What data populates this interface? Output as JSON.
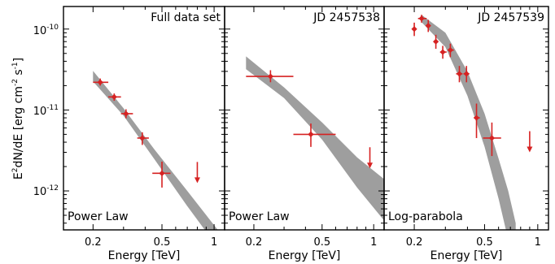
{
  "chart_data": {
    "type": "scatter",
    "ylabel": "E²dN/dE [erg cm⁻² s⁻¹]",
    "y_scale": "log",
    "x_scale": "log",
    "ylim": [
      3.3e-13,
      1.9e-10
    ],
    "xlim": [
      0.135,
      1.15
    ],
    "ytick_labels": [
      "10⁻¹⁰",
      "10⁻¹¹",
      "10⁻¹²"
    ],
    "ytick_values": [
      1e-10,
      1e-11,
      1e-12
    ],
    "colors": {
      "points": "#d62222",
      "band": "#9e9e9e"
    },
    "panels": [
      {
        "title": "Full data set",
        "model": "Power Law",
        "xlabel": "Energy [TeV]",
        "xtick_labels": [
          "0.2",
          "0.5",
          "1"
        ],
        "xtick_values": [
          0.2,
          0.5,
          1.0
        ],
        "points": [
          {
            "x": 0.22,
            "y": 2.2e-11,
            "xlo": 0.2,
            "xhi": 0.245,
            "ylo": 2e-11,
            "yhi": 2.45e-11
          },
          {
            "x": 0.265,
            "y": 1.45e-11,
            "xlo": 0.245,
            "xhi": 0.29,
            "ylo": 1.3e-11,
            "yhi": 1.6e-11
          },
          {
            "x": 0.31,
            "y": 9e-12,
            "xlo": 0.29,
            "xhi": 0.34,
            "ylo": 7.9e-12,
            "yhi": 1.02e-11
          },
          {
            "x": 0.385,
            "y": 4.5e-12,
            "xlo": 0.36,
            "xhi": 0.42,
            "ylo": 3.7e-12,
            "yhi": 5.3e-12
          },
          {
            "x": 0.5,
            "y": 1.65e-12,
            "xlo": 0.44,
            "xhi": 0.56,
            "ylo": 1.1e-12,
            "yhi": 2.3e-12
          }
        ],
        "upper_limits": [
          {
            "x": 0.8,
            "y": 1.25e-12
          }
        ],
        "band": [
          {
            "x": 0.2,
            "lo": 2.25e-11,
            "hi": 3.05e-11
          },
          {
            "x": 0.3,
            "lo": 8.5e-12,
            "hi": 1.05e-11
          },
          {
            "x": 0.45,
            "lo": 2.5e-12,
            "hi": 3.3e-12
          },
          {
            "x": 0.7,
            "lo": 6.5e-13,
            "hi": 1e-12
          },
          {
            "x": 1.05,
            "lo": 2e-13,
            "hi": 3.3e-13
          }
        ]
      },
      {
        "title": "JD 2457538",
        "model": "Power Law",
        "xlabel": "Energy [TeV]",
        "xtick_labels": [
          "0.2",
          "0.5",
          "1"
        ],
        "xtick_values": [
          0.2,
          0.5,
          1.0
        ],
        "points": [
          {
            "x": 0.25,
            "y": 2.6e-11,
            "xlo": 0.18,
            "xhi": 0.34,
            "ylo": 2.2e-11,
            "yhi": 3.1e-11
          },
          {
            "x": 0.43,
            "y": 5e-12,
            "xlo": 0.34,
            "xhi": 0.6,
            "ylo": 3.5e-12,
            "yhi": 6.8e-12
          }
        ],
        "upper_limits": [
          {
            "x": 0.95,
            "y": 1.9e-12
          }
        ],
        "band": [
          {
            "x": 0.18,
            "lo": 3.2e-11,
            "hi": 4.6e-11
          },
          {
            "x": 0.3,
            "lo": 1.4e-11,
            "hi": 1.9e-11
          },
          {
            "x": 0.5,
            "lo": 4.3e-12,
            "hi": 7e-12
          },
          {
            "x": 0.8,
            "lo": 1.1e-12,
            "hi": 2.6e-12
          },
          {
            "x": 1.15,
            "lo": 4.3e-13,
            "hi": 1.4e-12
          }
        ]
      },
      {
        "title": "JD 2457539",
        "model": "Log-parabola",
        "xlabel": "Energy [TeV]",
        "xtick_labels": [
          "0.2",
          "0.5",
          "1"
        ],
        "xtick_values": [
          0.2,
          0.5,
          1.0
        ],
        "points": [
          {
            "x": 0.2,
            "y": 1e-10,
            "xlo": 0.2,
            "xhi": 0.2,
            "ylo": 8.2e-11,
            "yhi": 1.2e-10
          },
          {
            "x": 0.22,
            "y": 1.35e-10,
            "xlo": 0.21,
            "xhi": 0.235,
            "ylo": 1.2e-10,
            "yhi": 1.5e-10
          },
          {
            "x": 0.24,
            "y": 1.1e-10,
            "xlo": 0.24,
            "xhi": 0.24,
            "ylo": 9.2e-11,
            "yhi": 1.3e-10
          },
          {
            "x": 0.265,
            "y": 7e-11,
            "xlo": 0.265,
            "xhi": 0.265,
            "ylo": 5.7e-11,
            "yhi": 8.5e-11
          },
          {
            "x": 0.29,
            "y": 5.2e-11,
            "xlo": 0.28,
            "xhi": 0.305,
            "ylo": 4.3e-11,
            "yhi": 6.2e-11
          },
          {
            "x": 0.32,
            "y": 5.5e-11,
            "xlo": 0.31,
            "xhi": 0.335,
            "ylo": 4.5e-11,
            "yhi": 6.6e-11
          },
          {
            "x": 0.36,
            "y": 2.8e-11,
            "xlo": 0.345,
            "xhi": 0.375,
            "ylo": 2.2e-11,
            "yhi": 3.5e-11
          },
          {
            "x": 0.395,
            "y": 2.8e-11,
            "xlo": 0.38,
            "xhi": 0.41,
            "ylo": 2.2e-11,
            "yhi": 3.5e-11
          },
          {
            "x": 0.45,
            "y": 8e-12,
            "xlo": 0.435,
            "xhi": 0.47,
            "ylo": 4.5e-12,
            "yhi": 1.2e-11
          },
          {
            "x": 0.55,
            "y": 4.5e-12,
            "xlo": 0.49,
            "xhi": 0.62,
            "ylo": 2.7e-12,
            "yhi": 7e-12
          }
        ],
        "upper_limits": [
          {
            "x": 0.9,
            "y": 3e-12
          }
        ],
        "band": [
          {
            "x": 0.22,
            "lo": 1.22e-10,
            "hi": 1.5e-10
          },
          {
            "x": 0.3,
            "lo": 6e-11,
            "hi": 9e-11
          },
          {
            "x": 0.4,
            "lo": 1.5e-11,
            "hi": 3e-11
          },
          {
            "x": 0.5,
            "lo": 3.5e-12,
            "hi": 9e-12
          },
          {
            "x": 0.6,
            "lo": 8e-13,
            "hi": 2.5e-12
          },
          {
            "x": 0.68,
            "lo": 2.5e-13,
            "hi": 1e-12
          },
          {
            "x": 0.75,
            "lo": 1e-13,
            "hi": 4e-13
          }
        ]
      }
    ]
  }
}
